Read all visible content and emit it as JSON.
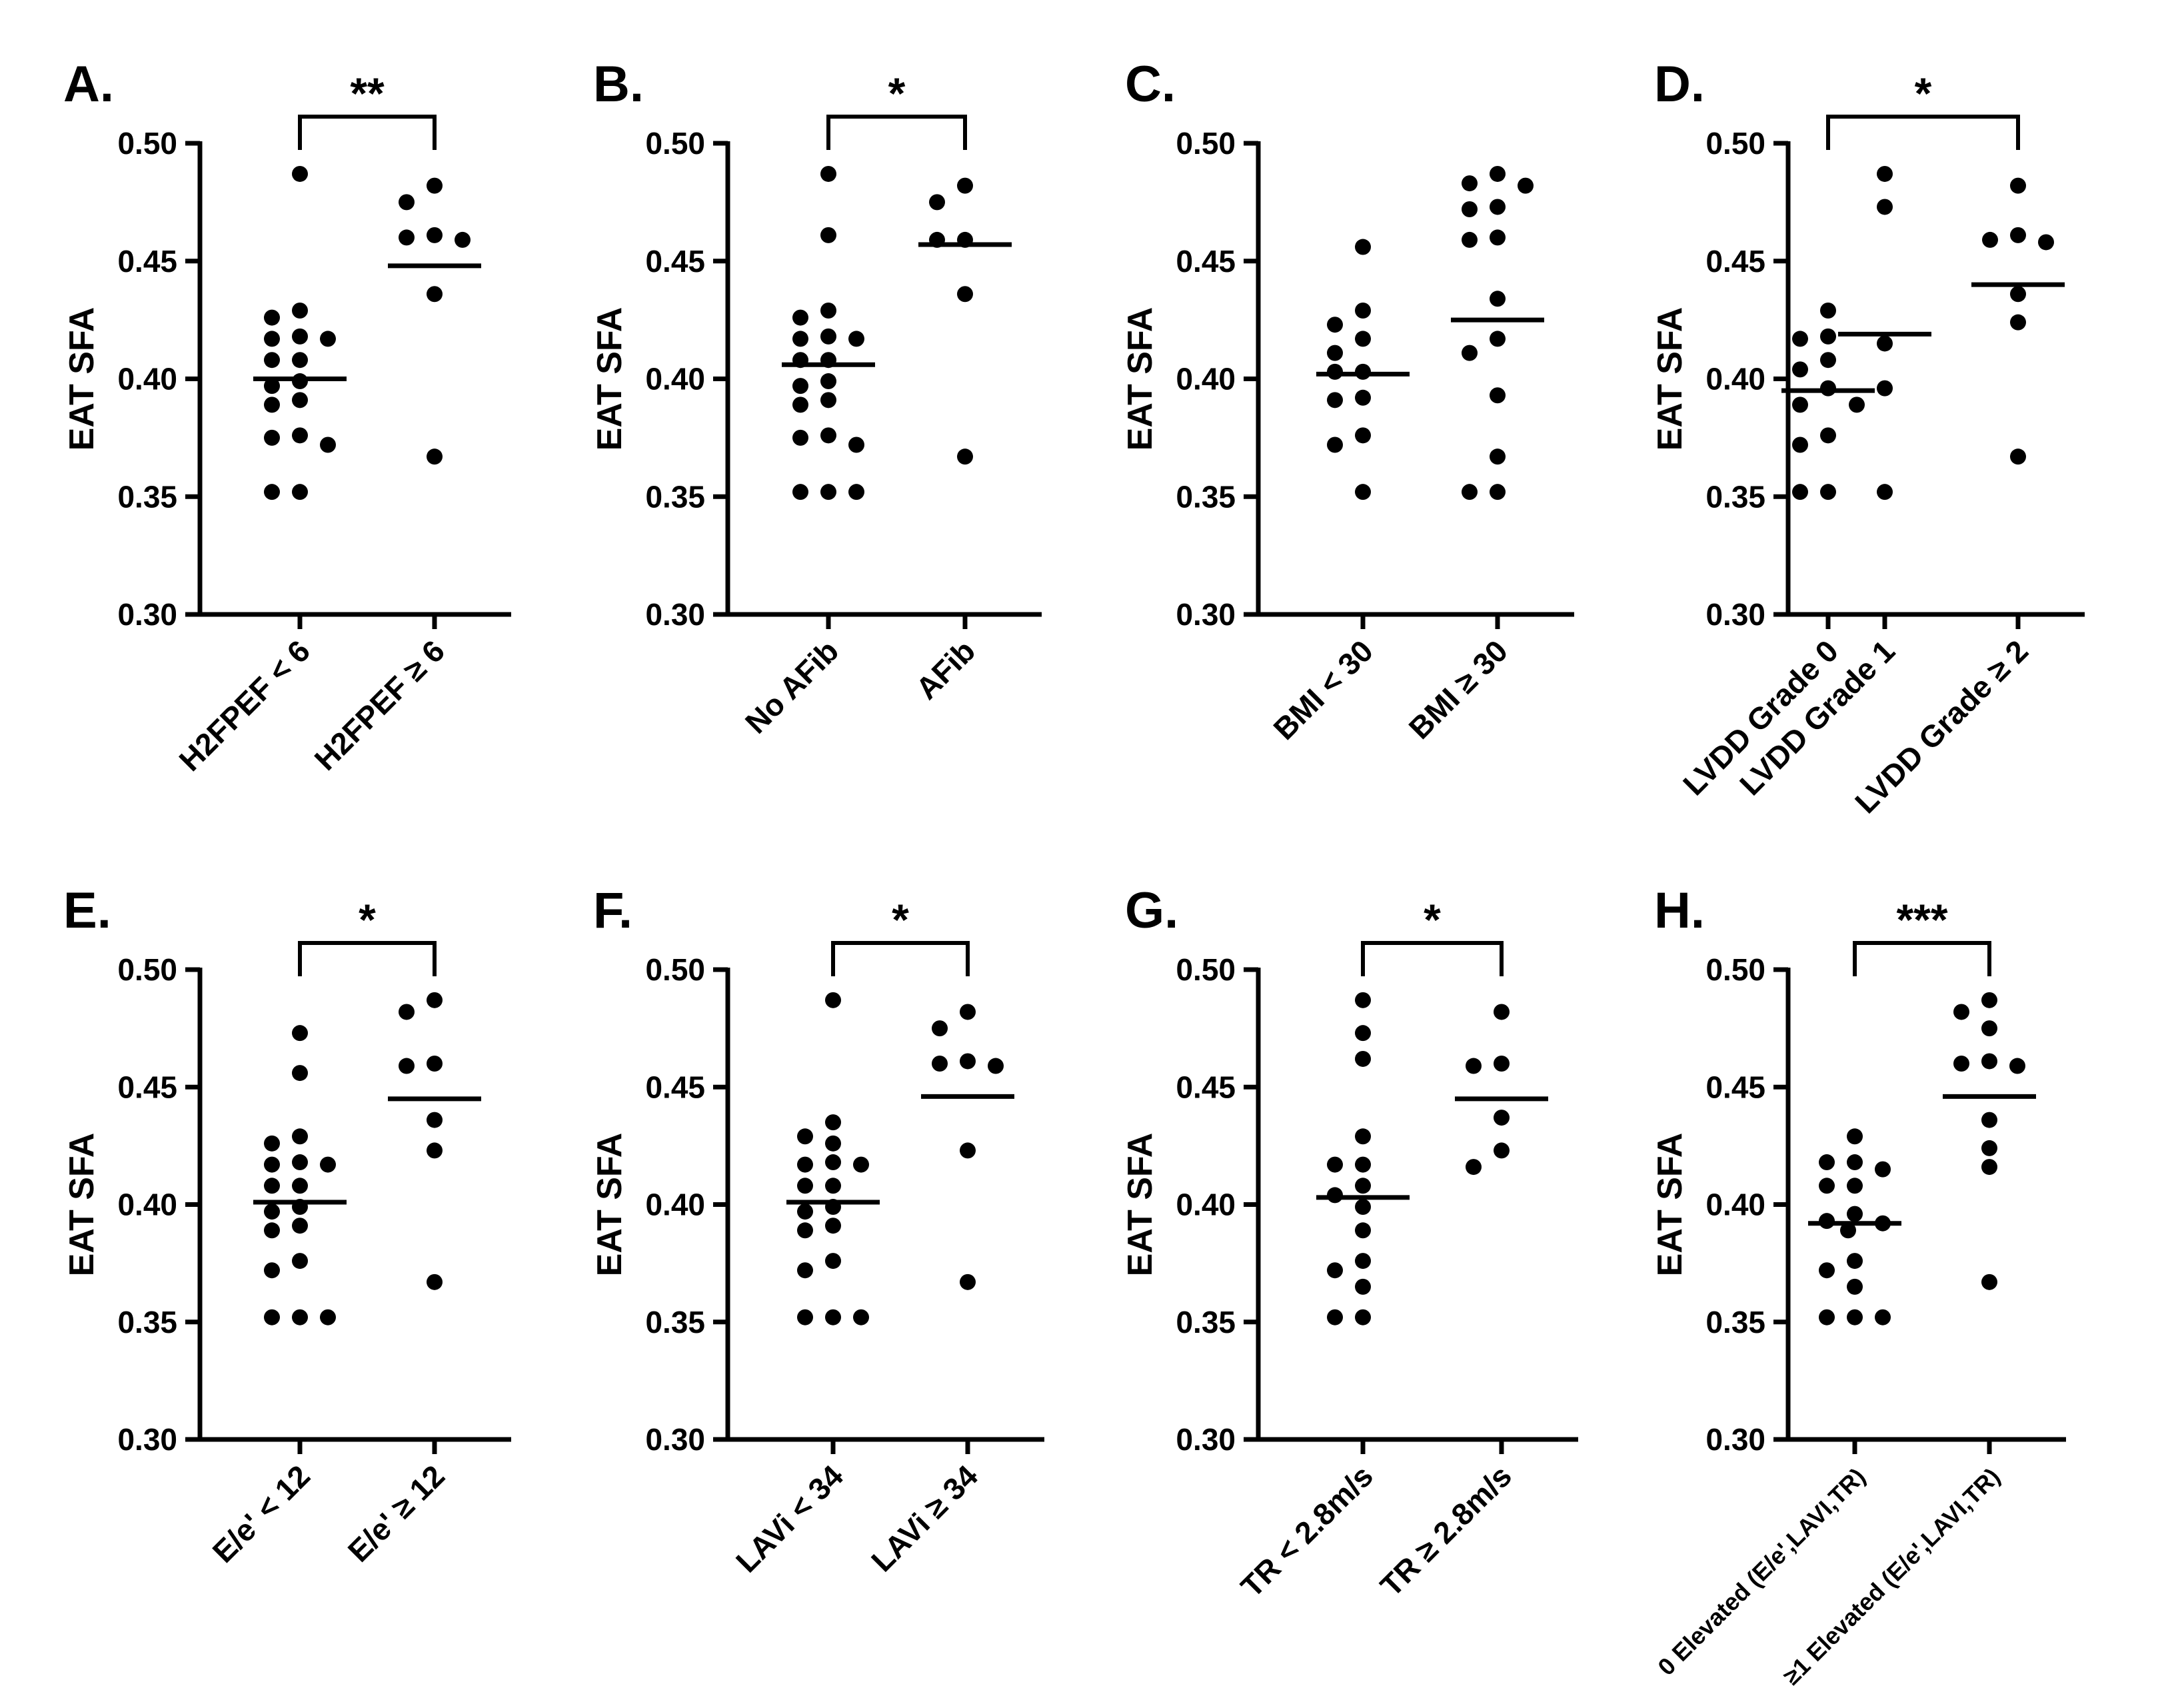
{
  "chart_data": [
    {
      "type": "scatter",
      "panel": "A.",
      "ylabel": "EAT SFA",
      "ylim": [
        0.3,
        0.5
      ],
      "yticks": [
        "0.30",
        "0.35",
        "0.40",
        "0.45",
        "0.50"
      ],
      "categories": [
        "H2FPEF < 6",
        "H2FPEF ≥ 6"
      ],
      "series": [
        {
          "values": [
            0.487,
            0.429,
            0.426,
            0.418,
            0.417,
            0.417,
            0.408,
            0.408,
            0.399,
            0.397,
            0.391,
            0.389,
            0.376,
            0.375,
            0.372,
            0.352,
            0.352
          ],
          "mean": 0.4
        },
        {
          "values": [
            0.482,
            0.475,
            0.461,
            0.46,
            0.459,
            0.436,
            0.367
          ],
          "mean": 0.448
        }
      ],
      "significance": {
        "label": "**",
        "from": 0,
        "to": 1
      }
    },
    {
      "type": "scatter",
      "panel": "B.",
      "ylabel": "EAT SFA",
      "ylim": [
        0.3,
        0.5
      ],
      "yticks": [
        "0.30",
        "0.35",
        "0.40",
        "0.45",
        "0.50"
      ],
      "categories": [
        "No AFib",
        "AFib"
      ],
      "series": [
        {
          "values": [
            0.487,
            0.461,
            0.429,
            0.426,
            0.418,
            0.417,
            0.417,
            0.408,
            0.408,
            0.399,
            0.397,
            0.391,
            0.389,
            0.376,
            0.375,
            0.372,
            0.352,
            0.352,
            0.352
          ],
          "mean": 0.406
        },
        {
          "values": [
            0.482,
            0.475,
            0.459,
            0.459,
            0.436,
            0.367
          ],
          "mean": 0.457
        }
      ],
      "significance": {
        "label": "*",
        "from": 0,
        "to": 1
      }
    },
    {
      "type": "scatter",
      "panel": "C.",
      "ylabel": "EAT SFA",
      "ylim": [
        0.3,
        0.5
      ],
      "yticks": [
        "0.30",
        "0.35",
        "0.40",
        "0.45",
        "0.50"
      ],
      "categories": [
        "BMI < 30",
        "BMI ≥ 30"
      ],
      "series": [
        {
          "values": [
            0.456,
            0.429,
            0.423,
            0.417,
            0.411,
            0.403,
            0.403,
            0.392,
            0.391,
            0.376,
            0.372,
            0.352
          ],
          "mean": 0.402
        },
        {
          "values": [
            0.487,
            0.483,
            0.482,
            0.473,
            0.472,
            0.46,
            0.459,
            0.434,
            0.417,
            0.411,
            0.393,
            0.367,
            0.352,
            0.352
          ],
          "mean": 0.425
        }
      ],
      "significance": null
    },
    {
      "type": "scatter",
      "panel": "D.",
      "ylabel": "EAT SFA",
      "ylim": [
        0.3,
        0.5
      ],
      "yticks": [
        "0.30",
        "0.35",
        "0.40",
        "0.45",
        "0.50"
      ],
      "categories": [
        "LVDD Grade 0",
        "LVDD Grade 1",
        "LVDD Grade ≥ 2"
      ],
      "series": [
        {
          "values": [
            0.429,
            0.418,
            0.417,
            0.408,
            0.404,
            0.396,
            0.389,
            0.376,
            0.372,
            0.352,
            0.352
          ],
          "mean": 0.395
        },
        {
          "values": [
            0.487,
            0.473,
            0.415,
            0.396,
            0.389,
            0.352
          ],
          "mean": 0.419
        },
        {
          "values": [
            0.482,
            0.461,
            0.459,
            0.458,
            0.436,
            0.424,
            0.367
          ],
          "mean": 0.44
        }
      ],
      "significance": {
        "label": "*",
        "from": 0,
        "to": 2
      }
    },
    {
      "type": "scatter",
      "panel": "E.",
      "ylabel": "EAT SFA",
      "ylim": [
        0.3,
        0.5
      ],
      "yticks": [
        "0.30",
        "0.35",
        "0.40",
        "0.45",
        "0.50"
      ],
      "categories": [
        "E/e' < 12",
        "E/e' ≥ 12"
      ],
      "series": [
        {
          "values": [
            0.473,
            0.456,
            0.429,
            0.426,
            0.418,
            0.417,
            0.417,
            0.408,
            0.408,
            0.399,
            0.397,
            0.391,
            0.389,
            0.376,
            0.372,
            0.352,
            0.352,
            0.352
          ],
          "mean": 0.401
        },
        {
          "values": [
            0.487,
            0.482,
            0.46,
            0.459,
            0.436,
            0.423,
            0.367
          ],
          "mean": 0.445
        }
      ],
      "significance": {
        "label": "*",
        "from": 0,
        "to": 1
      }
    },
    {
      "type": "scatter",
      "panel": "F.",
      "ylabel": "EAT SFA",
      "ylim": [
        0.3,
        0.5
      ],
      "yticks": [
        "0.30",
        "0.35",
        "0.40",
        "0.45",
        "0.50"
      ],
      "categories": [
        "LAVi < 34",
        "LAVi ≥ 34"
      ],
      "series": [
        {
          "values": [
            0.487,
            0.435,
            0.429,
            0.426,
            0.418,
            0.417,
            0.417,
            0.408,
            0.408,
            0.399,
            0.397,
            0.391,
            0.389,
            0.376,
            0.372,
            0.352,
            0.352,
            0.352
          ],
          "mean": 0.401
        },
        {
          "values": [
            0.482,
            0.475,
            0.461,
            0.46,
            0.459,
            0.423,
            0.367
          ],
          "mean": 0.446
        }
      ],
      "significance": {
        "label": "*",
        "from": 0,
        "to": 1
      }
    },
    {
      "type": "scatter",
      "panel": "G.",
      "ylabel": "EAT SFA",
      "ylim": [
        0.3,
        0.5
      ],
      "yticks": [
        "0.30",
        "0.35",
        "0.40",
        "0.45",
        "0.50"
      ],
      "categories": [
        "TR < 2.8m/s",
        "TR ≥ 2.8m/s"
      ],
      "series": [
        {
          "values": [
            0.487,
            0.473,
            0.462,
            0.429,
            0.417,
            0.417,
            0.408,
            0.404,
            0.399,
            0.389,
            0.376,
            0.372,
            0.365,
            0.352,
            0.352
          ],
          "mean": 0.403
        },
        {
          "values": [
            0.482,
            0.46,
            0.459,
            0.437,
            0.423,
            0.416
          ],
          "mean": 0.445
        }
      ],
      "significance": {
        "label": "*",
        "from": 0,
        "to": 1
      }
    },
    {
      "type": "scatter",
      "panel": "H.",
      "ylabel": "EAT SFA",
      "ylim": [
        0.3,
        0.5
      ],
      "yticks": [
        "0.30",
        "0.35",
        "0.40",
        "0.45",
        "0.50"
      ],
      "categories": [
        "0 Elevated (E/e',LAVI,TR)",
        "≥1 Elevated (E/e',LAVI,TR)"
      ],
      "series": [
        {
          "values": [
            0.429,
            0.418,
            0.418,
            0.415,
            0.408,
            0.408,
            0.396,
            0.393,
            0.392,
            0.389,
            0.376,
            0.372,
            0.365,
            0.352,
            0.352,
            0.352
          ],
          "mean": 0.392
        },
        {
          "values": [
            0.487,
            0.482,
            0.475,
            0.461,
            0.46,
            0.459,
            0.436,
            0.424,
            0.416,
            0.367
          ],
          "mean": 0.446
        }
      ],
      "significance": {
        "label": "***",
        "from": 0,
        "to": 1
      }
    }
  ]
}
